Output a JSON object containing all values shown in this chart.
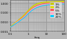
{
  "title": "",
  "xlabel": "freq",
  "ylabel": "",
  "xscale": "log",
  "yscale": "log",
  "xlim": [
    0.1,
    100
  ],
  "ylim": [
    0.001,
    2.0
  ],
  "ytick_vals": [
    0.001,
    0.01,
    0.1,
    1.0
  ],
  "ytick_labels": [
    "0.001",
    "0.010",
    "0.100",
    "1.000"
  ],
  "xtick_vals": [
    0.1,
    1,
    10,
    100
  ],
  "xtick_labels": [
    "0.1",
    "1",
    "10",
    "100"
  ],
  "grid_major_color": "#bbbbbb",
  "grid_minor_color": "#cccccc",
  "background_color": "#b8b8b8",
  "plot_bg_color": "#c0c0c0",
  "curves": [
    {
      "damping": "1%",
      "color": "#c8c800",
      "x": [
        0.1,
        0.15,
        0.2,
        0.3,
        0.5,
        0.7,
        1.0,
        1.5,
        2.0,
        3.0,
        5.0,
        7.0,
        10.0,
        15.0,
        20.0,
        30.0,
        50.0,
        70.0,
        100.0
      ],
      "y": [
        0.0025,
        0.005,
        0.008,
        0.016,
        0.038,
        0.072,
        0.16,
        0.35,
        0.55,
        0.85,
        1.1,
        1.22,
        1.3,
        1.38,
        1.42,
        1.46,
        1.5,
        1.53,
        1.55
      ]
    },
    {
      "damping": "2%",
      "color": "#dddd00",
      "x": [
        0.1,
        0.15,
        0.2,
        0.3,
        0.5,
        0.7,
        1.0,
        1.5,
        2.0,
        3.0,
        5.0,
        7.0,
        10.0,
        15.0,
        20.0,
        30.0,
        50.0,
        70.0,
        100.0
      ],
      "y": [
        0.0025,
        0.005,
        0.008,
        0.015,
        0.034,
        0.063,
        0.14,
        0.29,
        0.46,
        0.7,
        0.94,
        1.06,
        1.14,
        1.22,
        1.26,
        1.3,
        1.34,
        1.36,
        1.38
      ]
    },
    {
      "damping": "5%",
      "color": "#ff5555",
      "x": [
        0.1,
        0.15,
        0.2,
        0.3,
        0.5,
        0.7,
        1.0,
        1.5,
        2.0,
        3.0,
        5.0,
        7.0,
        10.0,
        15.0,
        20.0,
        30.0,
        50.0,
        70.0,
        100.0
      ],
      "y": [
        0.0025,
        0.004,
        0.007,
        0.013,
        0.028,
        0.05,
        0.11,
        0.22,
        0.34,
        0.52,
        0.72,
        0.83,
        0.9,
        0.97,
        1.0,
        1.05,
        1.08,
        1.1,
        1.12
      ]
    },
    {
      "damping": "10%",
      "color": "#ffaacc",
      "x": [
        0.1,
        0.15,
        0.2,
        0.3,
        0.5,
        0.7,
        1.0,
        1.5,
        2.0,
        3.0,
        5.0,
        7.0,
        10.0,
        15.0,
        20.0,
        30.0,
        50.0,
        70.0,
        100.0
      ],
      "y": [
        0.0025,
        0.004,
        0.007,
        0.012,
        0.024,
        0.042,
        0.09,
        0.18,
        0.27,
        0.41,
        0.57,
        0.66,
        0.73,
        0.79,
        0.82,
        0.86,
        0.89,
        0.91,
        0.92
      ]
    },
    {
      "damping": "20%",
      "color": "#00ccff",
      "x": [
        0.1,
        0.15,
        0.2,
        0.3,
        0.5,
        0.7,
        1.0,
        1.5,
        2.0,
        3.0,
        5.0,
        7.0,
        10.0,
        15.0,
        20.0,
        30.0,
        50.0,
        70.0,
        100.0
      ],
      "y": [
        0.0025,
        0.004,
        0.006,
        0.01,
        0.02,
        0.034,
        0.072,
        0.14,
        0.21,
        0.32,
        0.45,
        0.53,
        0.59,
        0.64,
        0.67,
        0.71,
        0.74,
        0.76,
        0.77
      ]
    }
  ],
  "legend_labels": [
    "1%",
    "2%",
    "5%",
    "10%",
    "20%"
  ],
  "legend_colors": [
    "#c8c800",
    "#dddd00",
    "#ff5555",
    "#ffaacc",
    "#00ccff"
  ],
  "linewidth": 0.7,
  "legend_fontsize": 3.2,
  "tick_fontsize": 3.0
}
